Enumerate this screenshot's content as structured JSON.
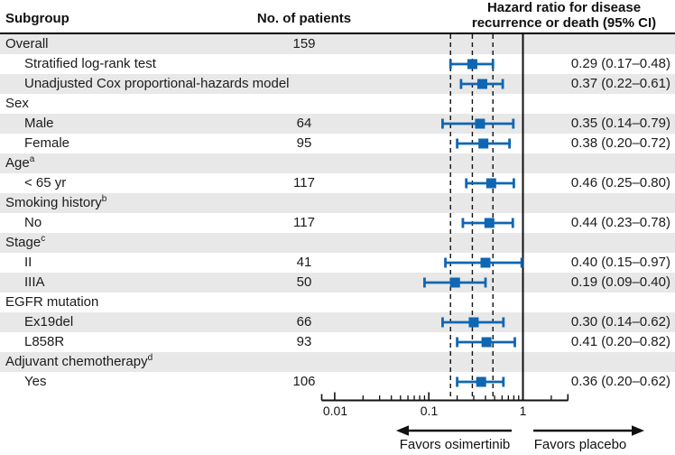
{
  "header": {
    "subgroup": "Subgroup",
    "patients": "No. of patients",
    "hr_line1": "Hazard ratio for disease",
    "hr_line2": "recurrence or death (95% CI)"
  },
  "axis": {
    "tick_labels": [
      "0.01",
      "0.1",
      "1"
    ],
    "favors_left": "Favors osimertinib",
    "favors_right": "Favors placebo"
  },
  "colors": {
    "marker_blue": "#0f66b3",
    "band_gray": "#e8e8e8",
    "line_black": "#111111"
  },
  "chart_data": {
    "type": "forest",
    "x_scale": "log10",
    "x_range": [
      0.007,
      3
    ],
    "x_ticks": [
      0.01,
      0.1,
      1
    ],
    "minor_ticks": [
      0.02,
      0.03,
      0.04,
      0.05,
      0.06,
      0.07,
      0.08,
      0.09,
      0.2,
      0.3,
      0.4,
      0.5,
      0.6,
      0.7,
      0.8,
      0.9,
      2
    ],
    "reference_line": 1,
    "dashed_guides": [
      0.17,
      0.29,
      0.48
    ],
    "rows": [
      {
        "label": "Overall",
        "indent": 0,
        "n": "159",
        "shade": true
      },
      {
        "label": "Stratified log-rank test",
        "indent": 1,
        "hr": 0.29,
        "lo": 0.17,
        "hi": 0.48,
        "ci": "0.29 (0.17–0.48)",
        "shade": false
      },
      {
        "label": "Unadjusted Cox proportional-hazards model",
        "indent": 1,
        "hr": 0.37,
        "lo": 0.22,
        "hi": 0.61,
        "ci": "0.37 (0.22–0.61)",
        "shade": true
      },
      {
        "label": "Sex",
        "indent": 0,
        "shade": false
      },
      {
        "label": "Male",
        "indent": 1,
        "n": "64",
        "hr": 0.35,
        "lo": 0.14,
        "hi": 0.79,
        "ci": "0.35 (0.14–0.79)",
        "shade": true
      },
      {
        "label": "Female",
        "indent": 1,
        "n": "95",
        "hr": 0.38,
        "lo": 0.2,
        "hi": 0.72,
        "ci": "0.38 (0.20–0.72)",
        "shade": false
      },
      {
        "label": "Age",
        "sup": "a",
        "indent": 0,
        "shade": true
      },
      {
        "label": "< 65 yr",
        "indent": 1,
        "n": "117",
        "hr": 0.46,
        "lo": 0.25,
        "hi": 0.8,
        "ci": "0.46 (0.25–0.80)",
        "shade": false
      },
      {
        "label": "Smoking history",
        "sup": "b",
        "indent": 0,
        "shade": true
      },
      {
        "label": "No",
        "indent": 1,
        "n": "117",
        "hr": 0.44,
        "lo": 0.23,
        "hi": 0.78,
        "ci": "0.44 (0.23–0.78)",
        "shade": false
      },
      {
        "label": "Stage",
        "sup": "c",
        "indent": 0,
        "shade": true
      },
      {
        "label": "II",
        "indent": 1,
        "n": "41",
        "hr": 0.4,
        "lo": 0.15,
        "hi": 0.97,
        "ci": "0.40 (0.15–0.97)",
        "shade": false
      },
      {
        "label": "IIIA",
        "indent": 1,
        "n": "50",
        "hr": 0.19,
        "lo": 0.09,
        "hi": 0.4,
        "ci": "0.19 (0.09–0.40)",
        "shade": true
      },
      {
        "label": "EGFR mutation",
        "indent": 0,
        "shade": false
      },
      {
        "label": "Ex19del",
        "indent": 1,
        "n": "66",
        "hr": 0.3,
        "lo": 0.14,
        "hi": 0.62,
        "ci": "0.30 (0.14–0.62)",
        "shade": true
      },
      {
        "label": "L858R",
        "indent": 1,
        "n": "93",
        "hr": 0.41,
        "lo": 0.2,
        "hi": 0.82,
        "ci": "0.41 (0.20–0.82)",
        "shade": false
      },
      {
        "label": "Adjuvant chemotherapy",
        "sup": "d",
        "indent": 0,
        "shade": true
      },
      {
        "label": "Yes",
        "indent": 1,
        "n": "106",
        "hr": 0.36,
        "lo": 0.2,
        "hi": 0.62,
        "ci": "0.36 (0.20–0.62)",
        "shade": false
      }
    ]
  }
}
